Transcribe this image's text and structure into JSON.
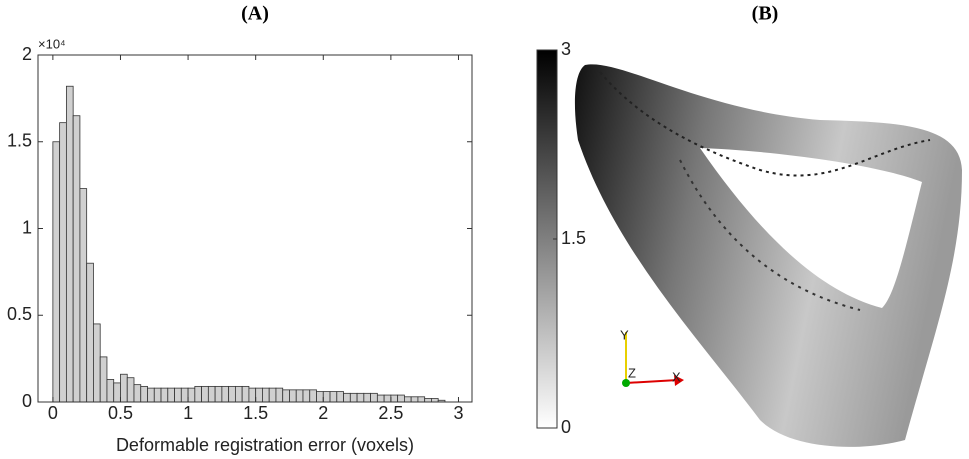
{
  "chart_data": [
    {
      "type": "histogram",
      "title": "(A)",
      "xlabel": "Deformable registration error (voxels)",
      "y_multiplier": "×10⁴",
      "bins": [
        0,
        0.05,
        0.1,
        0.15,
        0.2,
        0.25,
        0.3,
        0.35,
        0.4,
        0.45,
        0.5,
        0.55,
        0.6,
        0.65,
        0.7,
        0.75,
        0.8,
        0.85,
        0.9,
        0.95,
        1,
        1.05,
        1.1,
        1.15,
        1.2,
        1.25,
        1.3,
        1.35,
        1.4,
        1.45,
        1.5,
        1.55,
        1.6,
        1.65,
        1.7,
        1.75,
        1.8,
        1.85,
        1.9,
        1.95,
        2,
        2.05,
        2.1,
        2.15,
        2.2,
        2.25,
        2.3,
        2.35,
        2.4,
        2.45,
        2.5,
        2.55,
        2.6,
        2.65,
        2.7,
        2.75,
        2.8,
        2.85,
        2.9
      ],
      "values": [
        1.5,
        1.61,
        1.82,
        1.65,
        1.23,
        0.8,
        0.45,
        0.26,
        0.13,
        0.11,
        0.16,
        0.14,
        0.1,
        0.09,
        0.08,
        0.08,
        0.08,
        0.08,
        0.08,
        0.08,
        0.08,
        0.09,
        0.09,
        0.09,
        0.09,
        0.09,
        0.09,
        0.09,
        0.09,
        0.08,
        0.08,
        0.08,
        0.08,
        0.08,
        0.07,
        0.07,
        0.07,
        0.07,
        0.07,
        0.06,
        0.06,
        0.06,
        0.06,
        0.05,
        0.05,
        0.05,
        0.05,
        0.05,
        0.04,
        0.04,
        0.04,
        0.04,
        0.03,
        0.03,
        0.03,
        0.02,
        0.02,
        0.01
      ],
      "color": "#d0d0d0",
      "xlim": [
        -0.11,
        3.1
      ],
      "xticks": [
        0,
        0.5,
        1,
        1.5,
        2,
        2.5,
        3
      ],
      "ylim": [
        0,
        2
      ],
      "yticks": [
        0,
        0.5,
        1,
        1.5,
        2
      ]
    },
    {
      "type": "colorbar",
      "title": "(B)",
      "colormap": [
        "#ffffff",
        "#000000"
      ],
      "ylim": [
        0,
        3
      ],
      "yticks": [
        0,
        1.5,
        3
      ],
      "axes_triad": [
        "Y",
        "Z",
        "X"
      ]
    }
  ]
}
